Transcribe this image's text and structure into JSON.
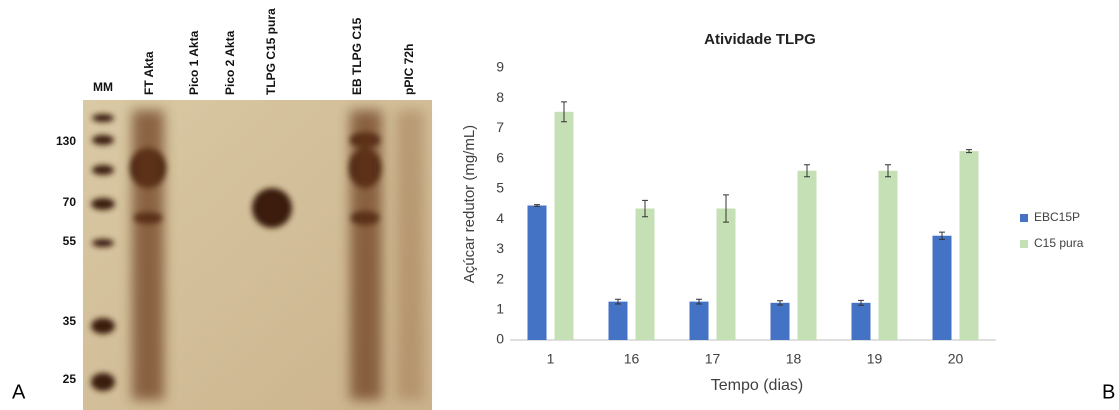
{
  "gel": {
    "panel_label": "A",
    "marker_label": "MM",
    "lanes": [
      "FT Akta",
      "Pico 1 Akta",
      "Pico 2 Akta",
      "TLPG C15 pura",
      "EB TLPG C15",
      "pPIC 72h"
    ],
    "marker_sizes": [
      130,
      70,
      55,
      35,
      25
    ]
  },
  "chart_data": {
    "type": "bar",
    "panel_label": "B",
    "title": "Atividade TLPG",
    "x_label": "Tempo (dias)",
    "y_label": "Açúcar redutor (mg/mL)",
    "categories": [
      "1",
      "16",
      "17",
      "18",
      "19",
      "20"
    ],
    "series": [
      {
        "name": "EBC15P",
        "color": "#4472c4",
        "values": [
          4.45,
          1.27,
          1.27,
          1.23,
          1.23,
          3.45
        ],
        "errors": [
          0.03,
          0.08,
          0.08,
          0.07,
          0.08,
          0.12
        ]
      },
      {
        "name": "C15 pura",
        "color": "#c5e0b4",
        "values": [
          7.55,
          4.35,
          4.35,
          5.6,
          5.6,
          6.25
        ],
        "errors": [
          0.33,
          0.27,
          0.45,
          0.2,
          0.2,
          0.05
        ]
      }
    ],
    "ylim": [
      0,
      9
    ],
    "yticks": [
      0,
      1,
      2,
      3,
      4,
      5,
      6,
      7,
      8,
      9
    ],
    "grid": false,
    "legend": "right"
  }
}
